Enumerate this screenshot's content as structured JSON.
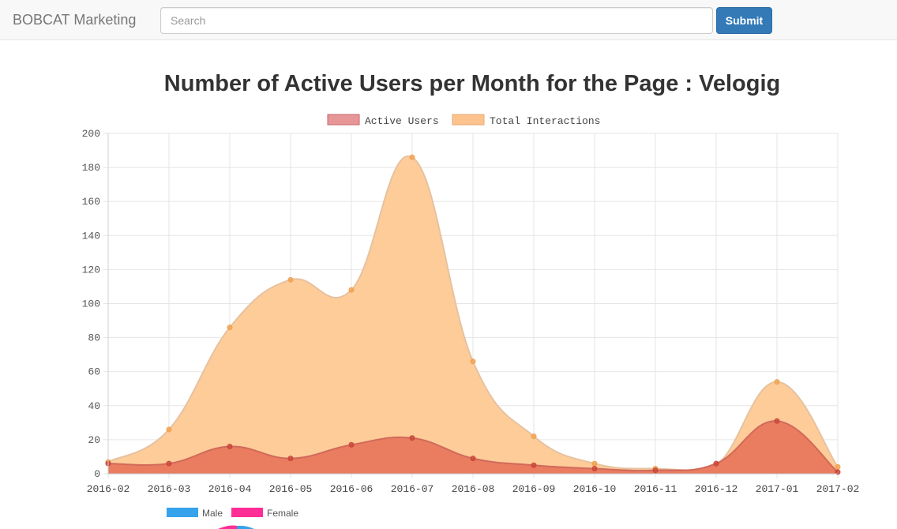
{
  "navbar": {
    "brand": "BOBCAT Marketing",
    "search_placeholder": "Search",
    "search_value": "",
    "submit_label": "Submit"
  },
  "colors": {
    "active_fill": "#e8735a",
    "active_stroke": "#d06a5a",
    "interactions_fill": "#fec994",
    "interactions_stroke": "#e6c2a0",
    "male": "#36a2eb",
    "female": "#ff2d96"
  },
  "chart_data": [
    {
      "type": "area",
      "title": "Number of Active Users per Month for the Page : Velogig",
      "categories": [
        "2016-02",
        "2016-03",
        "2016-04",
        "2016-05",
        "2016-06",
        "2016-07",
        "2016-08",
        "2016-09",
        "2016-10",
        "2016-11",
        "2016-12",
        "2017-01",
        "2017-02"
      ],
      "series": [
        {
          "name": "Active Users",
          "values": [
            6,
            6,
            16,
            9,
            17,
            21,
            9,
            5,
            3,
            2,
            6,
            31,
            1
          ]
        },
        {
          "name": "Total Interactions",
          "values": [
            7,
            26,
            86,
            114,
            108,
            186,
            66,
            22,
            6,
            3,
            5,
            54,
            4
          ]
        }
      ],
      "y_ticks": [
        0,
        20,
        40,
        60,
        80,
        100,
        120,
        140,
        160,
        180,
        200
      ],
      "ylim": [
        0,
        200
      ],
      "grid": true,
      "legend": "top"
    },
    {
      "type": "pie",
      "legend": [
        "Male",
        "Female"
      ]
    }
  ]
}
